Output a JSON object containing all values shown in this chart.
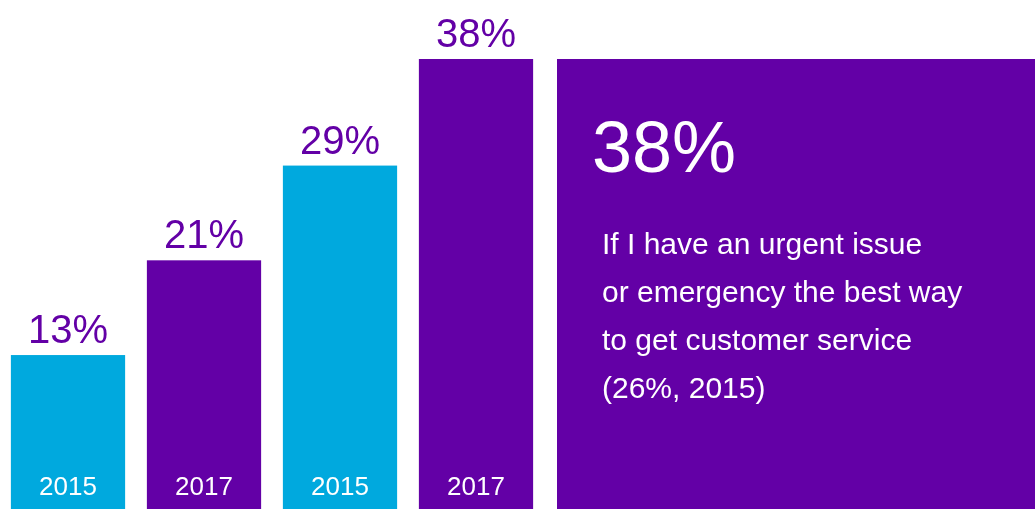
{
  "chart_data": [
    {
      "type": "bar",
      "categories": [
        "2015",
        "2017",
        "2015",
        "2017"
      ],
      "values": [
        13,
        21,
        29,
        38
      ],
      "colors": [
        "#00a9de",
        "#6300a6",
        "#00a9de",
        "#6300a6"
      ],
      "value_labels": [
        "13%",
        "21%",
        "29%",
        "38%"
      ],
      "color": "#6300a6"
    },
    {
      "type": "other",
      "title": "38%",
      "color": "#6300a6",
      "annotations": [
        "If I have an urgent issue or emergency the best way to get customer service (26%, 2015)"
      ]
    }
  ]
}
